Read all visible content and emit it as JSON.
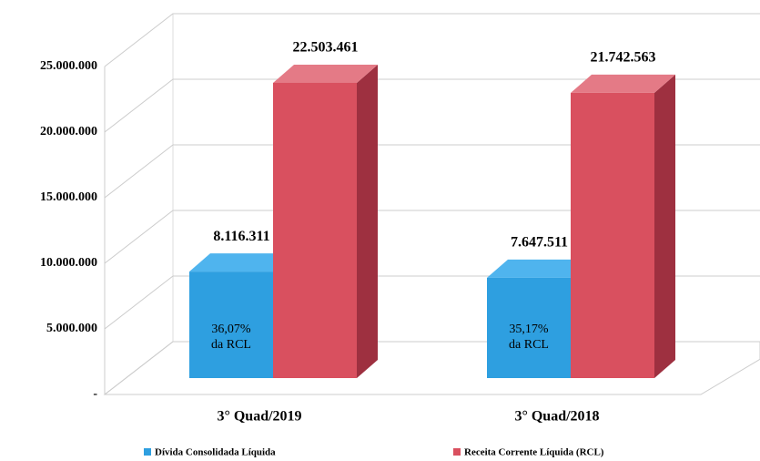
{
  "chart_data": {
    "type": "bar3d",
    "categories": [
      "3° Quad/2019",
      "3° Quad/2018"
    ],
    "series": [
      {
        "name": "Dívida Consolidada Líquida",
        "color": "#2e9fe0",
        "values": [
          8116311,
          7647511
        ],
        "value_labels": [
          "8.116.311",
          "7.647.511"
        ]
      },
      {
        "name": "Receita Corrente Líquida (RCL)",
        "color": "#d9505f",
        "values": [
          22503461,
          21742563
        ],
        "value_labels": [
          "22.503.461",
          "21.742.563"
        ]
      }
    ],
    "annotations": [
      [
        "36,07%",
        "da RCL"
      ],
      [
        "35,17%",
        "da RCL"
      ]
    ],
    "ylim": [
      0,
      25000000
    ],
    "yticks": [
      {
        "value": 0,
        "label": "-"
      },
      {
        "value": 5000000,
        "label": "5.000.000"
      },
      {
        "value": 10000000,
        "label": "10.000.000"
      },
      {
        "value": 15000000,
        "label": "15.000.000"
      },
      {
        "value": 20000000,
        "label": "20.000.000"
      },
      {
        "value": 25000000,
        "label": "25.000.000"
      }
    ],
    "grid": true,
    "legend": "bottom"
  }
}
